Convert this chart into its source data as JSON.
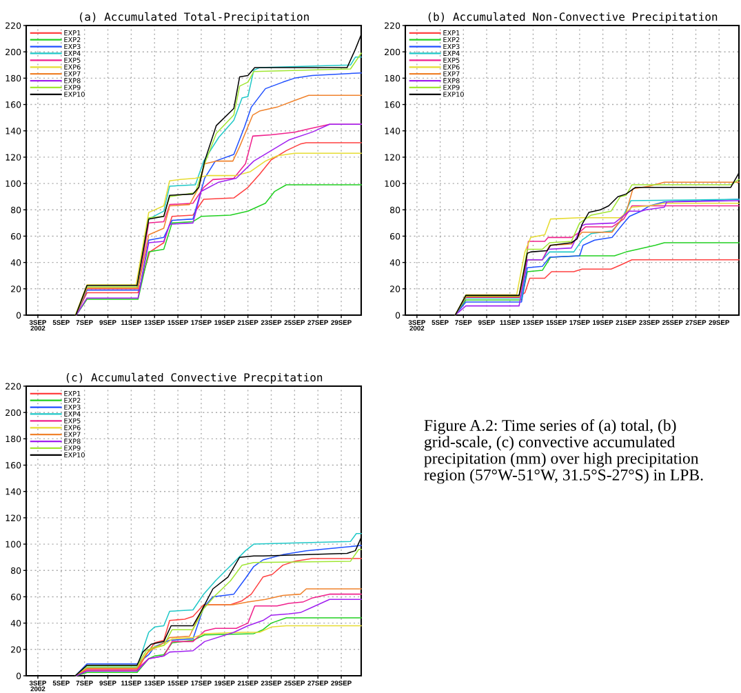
{
  "chart_data": [
    {
      "type": "line",
      "title": "(a) Accumulated Total-Precipitation",
      "xlim": [
        "2002-09-02T00:00",
        "2002-09-30T17:00"
      ],
      "ylim": [
        0,
        220
      ],
      "yticks": [
        0,
        20,
        40,
        60,
        80,
        100,
        120,
        140,
        160,
        180,
        200,
        220
      ],
      "xticks": [
        {
          "value": "2002-09-03",
          "label": "3SEP\n2002"
        },
        {
          "value": "2002-09-05",
          "label": "5SEP"
        },
        {
          "value": "2002-09-07",
          "label": "7SEP"
        },
        {
          "value": "2002-09-09",
          "label": "9SEP"
        },
        {
          "value": "2002-09-11",
          "label": "11SEP"
        },
        {
          "value": "2002-09-13",
          "label": "13SEP"
        },
        {
          "value": "2002-09-15",
          "label": "15SEP"
        },
        {
          "value": "2002-09-17",
          "label": "17SEP"
        },
        {
          "value": "2002-09-19",
          "label": "19SEP"
        },
        {
          "value": "2002-09-21",
          "label": "21SEP"
        },
        {
          "value": "2002-09-23",
          "label": "23SEP"
        },
        {
          "value": "2002-09-25",
          "label": "25SEP"
        },
        {
          "value": "2002-09-27",
          "label": "27SEP"
        },
        {
          "value": "2002-09-29",
          "label": "29SEP"
        }
      ],
      "grid": true,
      "legend": "top left",
      "line_style": "solid",
      "series": [
        {
          "name": "EXP1",
          "color": "#ff4040",
          "x": [
            "2002-09-06T06:00",
            "2002-09-07T05:00",
            "2002-09-11T14:00",
            "2002-09-12T14:00",
            "2002-09-13T19:00",
            "2002-09-14T12:00",
            "2002-09-16T07:00",
            "2002-09-17T05:00",
            "2002-09-19T19:00",
            "2002-09-21T00:00",
            "2002-09-22T00:00",
            "2002-09-23T00:00",
            "2002-09-24T07:00",
            "2002-09-25T12:00",
            "2002-09-26T00:00",
            "2002-09-30T17:00"
          ],
          "values": [
            0,
            17,
            17,
            48,
            55,
            75,
            76,
            88,
            89,
            97,
            107,
            118,
            125,
            130,
            131,
            131
          ]
        },
        {
          "name": "EXP2",
          "color": "#20d020",
          "x": [
            "2002-09-06T07:00",
            "2002-09-07T05:00",
            "2002-09-11T14:00",
            "2002-09-12T12:00",
            "2002-09-13T19:00",
            "2002-09-14T12:00",
            "2002-09-16T07:00",
            "2002-09-17T00:00",
            "2002-09-19T12:00",
            "2002-09-21T00:00",
            "2002-09-22T12:00",
            "2002-09-23T07:00",
            "2002-09-24T07:00",
            "2002-09-30T17:00"
          ],
          "values": [
            0,
            12,
            12,
            48,
            50,
            70,
            71,
            75,
            76,
            79,
            85,
            94,
            99,
            99
          ]
        },
        {
          "name": "EXP3",
          "color": "#2050ff",
          "x": [
            "2002-09-06T07:00",
            "2002-09-07T05:00",
            "2002-09-11T17:00",
            "2002-09-12T12:00",
            "2002-09-13T19:00",
            "2002-09-14T12:00",
            "2002-09-16T07:00",
            "2002-09-17T07:00",
            "2002-09-18T05:00",
            "2002-09-19T19:00",
            "2002-09-20T17:00",
            "2002-09-21T07:00",
            "2002-09-22T12:00",
            "2002-09-24T00:00",
            "2002-09-25T00:00",
            "2002-09-26T12:00",
            "2002-09-30T17:00"
          ],
          "values": [
            0,
            19,
            19,
            57,
            59,
            72,
            73,
            104,
            117,
            122,
            143,
            158,
            172,
            177,
            180,
            182,
            184
          ]
        },
        {
          "name": "EXP4",
          "color": "#20c8c8",
          "x": [
            "2002-09-11T12:00",
            "2002-09-12T12:00",
            "2002-09-13T19:00",
            "2002-09-14T07:00",
            "2002-09-16T12:00",
            "2002-09-17T05:00",
            "2002-09-18T12:00",
            "2002-09-19T19:00",
            "2002-09-20T12:00",
            "2002-09-21T00:00",
            "2002-09-21T12:00",
            "2002-09-22T00:00",
            "2002-09-29T19:00",
            "2002-09-30T05:00",
            "2002-09-30T17:00"
          ],
          "values": [
            21,
            73,
            79,
            98,
            99,
            117,
            135,
            148,
            165,
            166,
            186,
            188,
            190,
            196,
            196
          ]
        },
        {
          "name": "EXP5",
          "color": "#f0208c",
          "x": [
            "2002-09-06T06:00",
            "2002-09-07T05:00",
            "2002-09-11T14:00",
            "2002-09-12T12:00",
            "2002-09-13T19:00",
            "2002-09-14T07:00",
            "2002-09-16T07:00",
            "2002-09-17T05:00",
            "2002-09-18T00:00",
            "2002-09-19T19:00",
            "2002-09-20T19:00",
            "2002-09-21T10:00",
            "2002-09-23T00:00",
            "2002-09-25T00:00",
            "2002-09-26T00:00",
            "2002-09-28T00:00",
            "2002-09-30T17:00"
          ],
          "values": [
            0,
            20,
            20,
            70,
            71,
            84,
            85,
            97,
            103,
            104,
            115,
            136,
            137,
            139,
            141,
            145,
            145
          ]
        },
        {
          "name": "EXP6",
          "color": "#e6dc32",
          "x": [
            "2002-09-06T05:00",
            "2002-09-07T05:00",
            "2002-09-11T10:00",
            "2002-09-12T12:00",
            "2002-09-13T19:00",
            "2002-09-14T07:00",
            "2002-09-15T05:00",
            "2002-09-16T12:00",
            "2002-09-17T12:00",
            "2002-09-20T00:00",
            "2002-09-21T05:00",
            "2002-09-22T12:00",
            "2002-09-23T12:00",
            "2002-09-25T00:00",
            "2002-09-30T17:00"
          ],
          "values": [
            0,
            23,
            23,
            78,
            83,
            102,
            103,
            104,
            106,
            106,
            109,
            117,
            121,
            123,
            123
          ]
        },
        {
          "name": "EXP7",
          "color": "#f0822c",
          "x": [
            "2002-09-06T07:00",
            "2002-09-07T05:00",
            "2002-09-11T14:00",
            "2002-09-12T12:00",
            "2002-09-13T19:00",
            "2002-09-14T07:00",
            "2002-09-16T00:00",
            "2002-09-16T19:00",
            "2002-09-17T07:00",
            "2002-09-18T07:00",
            "2002-09-19T17:00",
            "2002-09-20T07:00",
            "2002-09-21T10:00",
            "2002-09-22T00:00",
            "2002-09-23T12:00",
            "2002-09-25T00:00",
            "2002-09-26T05:00",
            "2002-09-30T17:00"
          ],
          "values": [
            0,
            20.5,
            20.5,
            61,
            66,
            83,
            84,
            97,
            115,
            117,
            117,
            128,
            152,
            155,
            158,
            163,
            167,
            167
          ]
        },
        {
          "name": "EXP8",
          "color": "#a020f0",
          "x": [
            "2002-09-06T07:00",
            "2002-09-07T05:00",
            "2002-09-11T14:00",
            "2002-09-12T12:00",
            "2002-09-13T19:00",
            "2002-09-14T07:00",
            "2002-09-16T07:00",
            "2002-09-17T00:00",
            "2002-09-18T12:00",
            "2002-09-20T00:00",
            "2002-09-21T12:00",
            "2002-09-23T00:00",
            "2002-09-24T12:00",
            "2002-09-26T12:00",
            "2002-09-28T00:00",
            "2002-09-30T17:00"
          ],
          "values": [
            0,
            13,
            13,
            55,
            56,
            69,
            70,
            94,
            101,
            104,
            117,
            125,
            133,
            139,
            145,
            145
          ]
        },
        {
          "name": "EXP9",
          "color": "#a0e632",
          "x": [
            "2002-09-06T06:00",
            "2002-09-07T05:00",
            "2002-09-11T12:00",
            "2002-09-12T12:00",
            "2002-09-13T19:00",
            "2002-09-14T07:00",
            "2002-09-16T12:00",
            "2002-09-17T07:00",
            "2002-09-18T07:00",
            "2002-09-19T19:00",
            "2002-09-20T07:00",
            "2002-09-21T00:00",
            "2002-09-21T12:00",
            "2002-09-29T19:00",
            "2002-09-30T17:00"
          ],
          "values": [
            0,
            21.5,
            21.5,
            74,
            75,
            90,
            93,
            115,
            138,
            152,
            174,
            177,
            185,
            187,
            199
          ]
        },
        {
          "name": "EXP10",
          "color": "#000000",
          "x": [
            "2002-09-02T00:00",
            "2002-09-06T06:00",
            "2002-09-07T05:00",
            "2002-09-11T12:00",
            "2002-09-12T12:00",
            "2002-09-13T19:00",
            "2002-09-14T07:00",
            "2002-09-16T07:00",
            "2002-09-16T19:00",
            "2002-09-17T07:00",
            "2002-09-18T07:00",
            "2002-09-19T19:00",
            "2002-09-20T07:00",
            "2002-09-21T00:00",
            "2002-09-21T14:00",
            "2002-09-29T12:00",
            "2002-09-30T05:00",
            "2002-09-30T17:00"
          ],
          "values": [
            0,
            0,
            22.5,
            22.5,
            73,
            75,
            91,
            92,
            97,
            117,
            144,
            157,
            181,
            182,
            188,
            188,
            202,
            213
          ]
        }
      ]
    },
    {
      "type": "line",
      "title": "(b) Accumulated Non-Convective Precipitation",
      "xlim": [
        "2002-09-02T00:00",
        "2002-09-30T17:00"
      ],
      "ylim": [
        0,
        220
      ],
      "yticks": [
        0,
        20,
        40,
        60,
        80,
        100,
        120,
        140,
        160,
        180,
        200,
        220
      ],
      "xticks": [
        {
          "value": "2002-09-03",
          "label": "3SEP\n2002"
        },
        {
          "value": "2002-09-05",
          "label": "5SEP"
        },
        {
          "value": "2002-09-07",
          "label": "7SEP"
        },
        {
          "value": "2002-09-09",
          "label": "9SEP"
        },
        {
          "value": "2002-09-11",
          "label": "11SEP"
        },
        {
          "value": "2002-09-13",
          "label": "13SEP"
        },
        {
          "value": "2002-09-15",
          "label": "15SEP"
        },
        {
          "value": "2002-09-17",
          "label": "17SEP"
        },
        {
          "value": "2002-09-19",
          "label": "19SEP"
        },
        {
          "value": "2002-09-21",
          "label": "21SEP"
        },
        {
          "value": "2002-09-23",
          "label": "23SEP"
        },
        {
          "value": "2002-09-25",
          "label": "25SEP"
        },
        {
          "value": "2002-09-27",
          "label": "27SEP"
        },
        {
          "value": "2002-09-29",
          "label": "29SEP"
        }
      ],
      "grid": true,
      "legend": "top left",
      "line_style": "solid",
      "series": [
        {
          "name": "EXP1",
          "color": "#ff4040",
          "x": [
            "2002-09-06T07:00",
            "2002-09-07T05:00",
            "2002-09-11T19:00",
            "2002-09-12T07:00",
            "2002-09-12T17:00",
            "2002-09-14T00:00",
            "2002-09-14T14:00",
            "2002-09-16T12:00",
            "2002-09-17T05:00",
            "2002-09-19T17:00",
            "2002-09-20T12:00",
            "2002-09-21T12:00",
            "2002-09-30T17:00"
          ],
          "values": [
            0,
            14,
            14,
            17,
            28,
            28,
            33,
            33,
            35,
            35,
            38,
            42,
            42
          ]
        },
        {
          "name": "EXP2",
          "color": "#20d020",
          "x": [
            "2002-09-06T07:00",
            "2002-09-07T05:00",
            "2002-09-12T00:00",
            "2002-09-12T12:00",
            "2002-09-13T19:00",
            "2002-09-14T12:00",
            "2002-09-17T00:00",
            "2002-09-20T00:00",
            "2002-09-21T00:00",
            "2002-09-22T00:00",
            "2002-09-23T12:00",
            "2002-09-24T07:00",
            "2002-09-30T17:00"
          ],
          "values": [
            0,
            11.5,
            11.5,
            33,
            34,
            44,
            45,
            45,
            48,
            50,
            53,
            55,
            55
          ]
        },
        {
          "name": "EXP3",
          "color": "#2050ff",
          "x": [
            "2002-09-06T07:00",
            "2002-09-07T05:00",
            "2002-09-12T00:00",
            "2002-09-12T12:00",
            "2002-09-13T19:00",
            "2002-09-14T10:00",
            "2002-09-17T00:00",
            "2002-09-17T07:00",
            "2002-09-18T07:00",
            "2002-09-19T19:00",
            "2002-09-20T17:00",
            "2002-09-21T07:00",
            "2002-09-22T07:00",
            "2002-09-23T00:00",
            "2002-09-24T07:00",
            "2002-09-30T17:00"
          ],
          "values": [
            0,
            10,
            10,
            36,
            37,
            44,
            45,
            53,
            57,
            59,
            69,
            75,
            79,
            83,
            86,
            88
          ]
        },
        {
          "name": "EXP4",
          "color": "#20c8c8",
          "x": [
            "2002-09-06T07:00",
            "2002-09-07T05:00",
            "2002-09-12T00:00",
            "2002-09-12T12:00",
            "2002-09-13T19:00",
            "2002-09-14T10:00",
            "2002-09-16T12:00",
            "2002-09-17T05:00",
            "2002-09-18T00:00",
            "2002-09-19T19:00",
            "2002-09-20T12:00",
            "2002-09-21T10:00",
            "2002-09-30T17:00"
          ],
          "values": [
            0,
            13,
            13,
            42,
            42,
            48,
            48,
            57,
            62,
            64,
            71,
            87,
            88
          ]
        },
        {
          "name": "EXP5",
          "color": "#f0208c",
          "x": [
            "2002-09-06T07:00",
            "2002-09-07T05:00",
            "2002-09-11T19:00",
            "2002-09-12T07:00",
            "2002-09-12T14:00",
            "2002-09-14T00:00",
            "2002-09-14T07:00",
            "2002-09-16T07:00",
            "2002-09-17T00:00",
            "2002-09-17T12:00",
            "2002-09-19T19:00",
            "2002-09-20T19:00",
            "2002-09-21T12:00",
            "2002-09-30T17:00"
          ],
          "values": [
            0,
            13.5,
            13.5,
            31,
            56,
            56,
            59,
            59,
            63,
            67,
            67,
            73,
            83,
            83
          ]
        },
        {
          "name": "EXP6",
          "color": "#e6dc32",
          "x": [
            "2002-09-06T07:00",
            "2002-09-07T05:00",
            "2002-09-11T14:00",
            "2002-09-12T07:00",
            "2002-09-12T19:00",
            "2002-09-14T00:00",
            "2002-09-14T12:00",
            "2002-09-17T00:00",
            "2002-09-20T12:00",
            "2002-09-21T12:00",
            "2002-09-23T00:00",
            "2002-09-24T07:00",
            "2002-09-30T17:00"
          ],
          "values": [
            0,
            15.5,
            15.5,
            48,
            59,
            61,
            73,
            74,
            74,
            82,
            83,
            85,
            85
          ]
        },
        {
          "name": "EXP7",
          "color": "#f0822c",
          "x": [
            "2002-09-06T07:00",
            "2002-09-07T05:00",
            "2002-09-11T19:00",
            "2002-09-12T12:00",
            "2002-09-13T19:00",
            "2002-09-14T10:00",
            "2002-09-16T07:00",
            "2002-09-17T05:00",
            "2002-09-19T19:00",
            "2002-09-21T00:00",
            "2002-09-21T14:00",
            "2002-09-23T00:00",
            "2002-09-24T07:00",
            "2002-09-30T17:00"
          ],
          "values": [
            0,
            14,
            14,
            42,
            42,
            53,
            54,
            63,
            63,
            78,
            96,
            98,
            101,
            101
          ]
        },
        {
          "name": "EXP8",
          "color": "#a020f0",
          "x": [
            "2002-09-06T07:00",
            "2002-09-07T05:00",
            "2002-09-11T19:00",
            "2002-09-12T12:00",
            "2002-09-13T19:00",
            "2002-09-14T07:00",
            "2002-09-16T07:00",
            "2002-09-17T05:00",
            "2002-09-17T12:00",
            "2002-09-20T00:00",
            "2002-09-21T07:00",
            "2002-09-22T07:00",
            "2002-09-22T17:00",
            "2002-09-24T07:00",
            "2002-09-24T12:00",
            "2002-09-30T17:00"
          ],
          "values": [
            0,
            7,
            7,
            42,
            42,
            50,
            51,
            68,
            69,
            70,
            79,
            79,
            80,
            82,
            86,
            87
          ]
        },
        {
          "name": "EXP9",
          "color": "#a0e632",
          "x": [
            "2002-09-06T07:00",
            "2002-09-07T05:00",
            "2002-09-11T19:00",
            "2002-09-12T12:00",
            "2002-09-13T19:00",
            "2002-09-14T10:00",
            "2002-09-16T07:00",
            "2002-09-17T00:00",
            "2002-09-18T00:00",
            "2002-09-19T17:00",
            "2002-09-20T12:00",
            "2002-09-21T00:00",
            "2002-09-21T12:00",
            "2002-09-30T00:00",
            "2002-09-30T17:00"
          ],
          "values": [
            0,
            14.5,
            14.5,
            50,
            50,
            55,
            56,
            70,
            76,
            79,
            90,
            91,
            99,
            99,
            103
          ]
        },
        {
          "name": "EXP10",
          "color": "#000000",
          "x": [
            "2002-09-02T00:00",
            "2002-09-06T07:00",
            "2002-09-07T05:00",
            "2002-09-11T19:00",
            "2002-09-12T12:00",
            "2002-09-12T19:00",
            "2002-09-14T05:00",
            "2002-09-14T12:00",
            "2002-09-16T07:00",
            "2002-09-16T19:00",
            "2002-09-17T05:00",
            "2002-09-17T19:00",
            "2002-09-18T19:00",
            "2002-09-19T12:00",
            "2002-09-20T07:00",
            "2002-09-21T00:00",
            "2002-09-21T19:00",
            "2002-09-30T00:00",
            "2002-09-30T17:00"
          ],
          "values": [
            0,
            0,
            15,
            15,
            47,
            48,
            49,
            53,
            55,
            58,
            69,
            78,
            80,
            83,
            90,
            92,
            97,
            97,
            108
          ]
        }
      ]
    },
    {
      "type": "line",
      "title": "(c) Accumulated Convective Precpitation",
      "xlim": [
        "2002-09-02T00:00",
        "2002-09-30T17:00"
      ],
      "ylim": [
        0,
        220
      ],
      "yticks": [
        0,
        20,
        40,
        60,
        80,
        100,
        120,
        140,
        160,
        180,
        200,
        220
      ],
      "xticks": [
        {
          "value": "2002-09-03",
          "label": "3SEP\n2002"
        },
        {
          "value": "2002-09-05",
          "label": "5SEP"
        },
        {
          "value": "2002-09-07",
          "label": "7SEP"
        },
        {
          "value": "2002-09-09",
          "label": "9SEP"
        },
        {
          "value": "2002-09-11",
          "label": "11SEP"
        },
        {
          "value": "2002-09-13",
          "label": "13SEP"
        },
        {
          "value": "2002-09-15",
          "label": "15SEP"
        },
        {
          "value": "2002-09-17",
          "label": "17SEP"
        },
        {
          "value": "2002-09-19",
          "label": "19SEP"
        },
        {
          "value": "2002-09-21",
          "label": "21SEP"
        },
        {
          "value": "2002-09-23",
          "label": "23SEP"
        },
        {
          "value": "2002-09-25",
          "label": "25SEP"
        },
        {
          "value": "2002-09-27",
          "label": "27SEP"
        },
        {
          "value": "2002-09-29",
          "label": "29SEP"
        }
      ],
      "grid": true,
      "legend": "top left",
      "line_style": "solid",
      "annotations": [
        "Figure A.2: Time series of (a) total, (b) grid-scale, (c) convective accumulated precipitation (mm) over high precipitation region (57°W-51°W, 31.5°S-27°S) in LPB."
      ],
      "series": [
        {
          "name": "EXP1",
          "color": "#ff4040",
          "x": [
            "2002-09-06T05:00",
            "2002-09-07T05:00",
            "2002-09-11T12:00",
            "2002-09-12T07:00",
            "2002-09-13T00:00",
            "2002-09-13T19:00",
            "2002-09-14T07:00",
            "2002-09-15T14:00",
            "2002-09-16T07:00",
            "2002-09-17T05:00",
            "2002-09-19T12:00",
            "2002-09-20T12:00",
            "2002-09-21T07:00",
            "2002-09-22T07:00",
            "2002-09-23T02:00",
            "2002-09-24T00:00",
            "2002-09-25T00:00",
            "2002-09-26T12:00",
            "2002-09-30T17:00"
          ],
          "values": [
            0,
            4,
            4,
            16,
            25,
            27,
            42,
            43,
            45,
            54,
            54,
            57,
            62,
            75,
            77,
            84,
            87,
            89,
            89
          ]
        },
        {
          "name": "EXP2",
          "color": "#20d020",
          "x": [
            "2002-09-06T07:00",
            "2002-09-07T05:00",
            "2002-09-11T12:00",
            "2002-09-12T12:00",
            "2002-09-13T00:00",
            "2002-09-13T19:00",
            "2002-09-14T12:00",
            "2002-09-16T07:00",
            "2002-09-17T07:00",
            "2002-09-21T12:00",
            "2002-09-22T07:00",
            "2002-09-23T00:00",
            "2002-09-24T07:00",
            "2002-09-30T17:00"
          ],
          "values": [
            0,
            2.5,
            2.5,
            13,
            15,
            16,
            25,
            27,
            31,
            32,
            35,
            40,
            44,
            44
          ]
        },
        {
          "name": "EXP3",
          "color": "#2050ff",
          "x": [
            "2002-09-06T05:00",
            "2002-09-07T05:00",
            "2002-09-11T12:00",
            "2002-09-12T12:00",
            "2002-09-13T00:00",
            "2002-09-14T07:00",
            "2002-09-16T07:00",
            "2002-09-17T05:00",
            "2002-09-18T00:00",
            "2002-09-19T19:00",
            "2002-09-20T19:00",
            "2002-09-21T12:00",
            "2002-09-22T07:00",
            "2002-09-24T00:00",
            "2002-09-26T00:00",
            "2002-09-28T12:00",
            "2002-09-30T17:00"
          ],
          "values": [
            0,
            9,
            9,
            16,
            22,
            27,
            28,
            52,
            60,
            62,
            74,
            83,
            88,
            92,
            95,
            97,
            99
          ]
        },
        {
          "name": "EXP4",
          "color": "#20c8c8",
          "x": [
            "2002-09-06T05:00",
            "2002-09-07T05:00",
            "2002-09-11T12:00",
            "2002-09-12T12:00",
            "2002-09-13T00:00",
            "2002-09-13T19:00",
            "2002-09-14T07:00",
            "2002-09-16T07:00",
            "2002-09-17T05:00",
            "2002-09-18T05:00",
            "2002-09-19T19:00",
            "2002-09-20T19:00",
            "2002-09-21T12:00",
            "2002-09-29T19:00",
            "2002-09-30T07:00",
            "2002-09-30T17:00"
          ],
          "values": [
            0,
            6.5,
            6.5,
            33,
            37,
            38,
            49,
            50,
            62,
            72,
            86,
            95,
            100,
            102,
            108,
            108
          ]
        },
        {
          "name": "EXP5",
          "color": "#f0208c",
          "x": [
            "2002-09-06T07:00",
            "2002-09-07T05:00",
            "2002-09-11T12:00",
            "2002-09-12T12:00",
            "2002-09-13T19:00",
            "2002-09-14T12:00",
            "2002-09-16T07:00",
            "2002-09-17T07:00",
            "2002-09-18T05:00",
            "2002-09-20T00:00",
            "2002-09-21T00:00",
            "2002-09-21T14:00",
            "2002-09-23T12:00",
            "2002-09-24T12:00",
            "2002-09-25T17:00",
            "2002-09-26T12:00",
            "2002-09-28T00:00",
            "2002-09-30T17:00"
          ],
          "values": [
            0,
            5,
            5,
            13,
            15,
            26,
            26,
            34,
            36,
            36,
            40,
            53,
            53,
            55,
            56,
            59,
            62,
            62
          ]
        },
        {
          "name": "EXP6",
          "color": "#e6dc32",
          "x": [
            "2002-09-06T05:00",
            "2002-09-07T05:00",
            "2002-09-11T12:00",
            "2002-09-12T07:00",
            "2002-09-13T00:00",
            "2002-09-13T19:00",
            "2002-09-14T12:00",
            "2002-09-16T07:00",
            "2002-09-17T07:00",
            "2002-09-20T12:00",
            "2002-09-22T00:00",
            "2002-09-23T00:00",
            "2002-09-24T07:00",
            "2002-09-30T17:00"
          ],
          "values": [
            0,
            6,
            6,
            17,
            21,
            23,
            28,
            29,
            32,
            33,
            33,
            37,
            38,
            38
          ]
        },
        {
          "name": "EXP7",
          "color": "#f0822c",
          "x": [
            "2002-09-06T07:00",
            "2002-09-07T05:00",
            "2002-09-11T12:00",
            "2002-09-12T12:00",
            "2002-09-13T19:00",
            "2002-09-14T07:00",
            "2002-09-16T00:00",
            "2002-09-17T05:00",
            "2002-09-17T14:00",
            "2002-09-19T17:00",
            "2002-09-21T00:00",
            "2002-09-22T12:00",
            "2002-09-24T00:00",
            "2002-09-25T12:00",
            "2002-09-26T00:00",
            "2002-09-30T17:00"
          ],
          "values": [
            0,
            5.5,
            5.5,
            19,
            25,
            29,
            30,
            53,
            54,
            54,
            56,
            58,
            61,
            62,
            66,
            66
          ]
        },
        {
          "name": "EXP8",
          "color": "#a020f0",
          "x": [
            "2002-09-06T07:00",
            "2002-09-07T05:00",
            "2002-09-11T12:00",
            "2002-09-12T12:00",
            "2002-09-13T19:00",
            "2002-09-14T07:00",
            "2002-09-16T07:00",
            "2002-09-17T07:00",
            "2002-09-19T19:00",
            "2002-09-21T00:00",
            "2002-09-22T07:00",
            "2002-09-23T00:00",
            "2002-09-24T12:00",
            "2002-09-25T12:00",
            "2002-09-26T12:00",
            "2002-09-28T00:00",
            "2002-09-30T17:00"
          ],
          "values": [
            0,
            3.5,
            3.5,
            13,
            15,
            18,
            19,
            26,
            33,
            38,
            42,
            46,
            47,
            48,
            52,
            58,
            58
          ]
        },
        {
          "name": "EXP9",
          "color": "#a0e632",
          "x": [
            "2002-09-06T05:00",
            "2002-09-07T05:00",
            "2002-09-11T12:00",
            "2002-09-12T07:00",
            "2002-09-13T00:00",
            "2002-09-13T19:00",
            "2002-09-14T12:00",
            "2002-09-16T07:00",
            "2002-09-17T05:00",
            "2002-09-18T05:00",
            "2002-09-19T12:00",
            "2002-09-20T12:00",
            "2002-09-21T12:00",
            "2002-09-29T19:00",
            "2002-09-30T12:00",
            "2002-09-30T17:00"
          ],
          "values": [
            0,
            7.5,
            7.5,
            19,
            22,
            23,
            35,
            35,
            51,
            61,
            72,
            84,
            86,
            87,
            96,
            96
          ]
        },
        {
          "name": "EXP10",
          "color": "#000000",
          "x": [
            "2002-09-02T00:00",
            "2002-09-06T05:00",
            "2002-09-07T05:00",
            "2002-09-11T12:00",
            "2002-09-12T00:00",
            "2002-09-12T17:00",
            "2002-09-13T19:00",
            "2002-09-14T10:00",
            "2002-09-16T07:00",
            "2002-09-17T00:00",
            "2002-09-18T00:00",
            "2002-09-19T07:00",
            "2002-09-20T07:00",
            "2002-09-21T12:00",
            "2002-09-22T07:00",
            "2002-09-29T12:00",
            "2002-09-30T05:00",
            "2002-09-30T17:00"
          ],
          "values": [
            0,
            0,
            8,
            8,
            18,
            24,
            26,
            38,
            38,
            49,
            66,
            75,
            90,
            91,
            91,
            93,
            95,
            105
          ]
        }
      ]
    }
  ]
}
